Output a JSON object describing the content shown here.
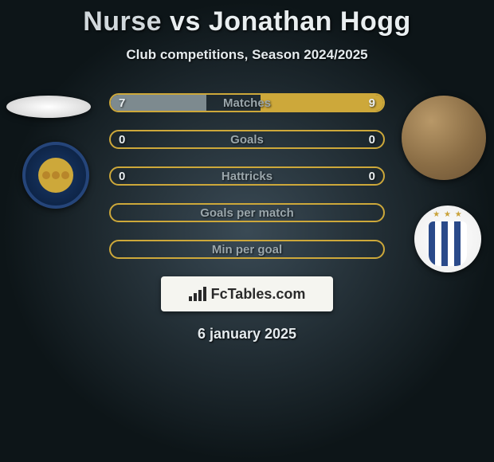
{
  "header": {
    "player1": "Nurse",
    "vs": "vs",
    "player2": "Jonathan Hogg",
    "subtitle": "Club competitions, Season 2024/2025"
  },
  "stats": {
    "bar_max": 10,
    "colors": {
      "p1_bar": "#7d8a8f",
      "p2_bar": "#cda83a",
      "border_default": "#cda83a",
      "border_p1_dominant": "#7d8a8f",
      "label_text": "#9aa6ab"
    },
    "rows": [
      {
        "label": "Matches",
        "left": "7",
        "right": "9",
        "left_val": 7,
        "right_val": 9
      },
      {
        "label": "Goals",
        "left": "0",
        "right": "0",
        "left_val": 0,
        "right_val": 0
      },
      {
        "label": "Hattricks",
        "left": "0",
        "right": "0",
        "left_val": 0,
        "right_val": 0
      },
      {
        "label": "Goals per match",
        "left": "",
        "right": "",
        "left_val": 0,
        "right_val": 0
      },
      {
        "label": "Min per goal",
        "left": "",
        "right": "",
        "left_val": 0,
        "right_val": 0
      }
    ]
  },
  "brand": {
    "text": "FcTables.com"
  },
  "footer": {
    "date": "6 january 2025"
  },
  "icons": {
    "chart": "chart-icon"
  }
}
